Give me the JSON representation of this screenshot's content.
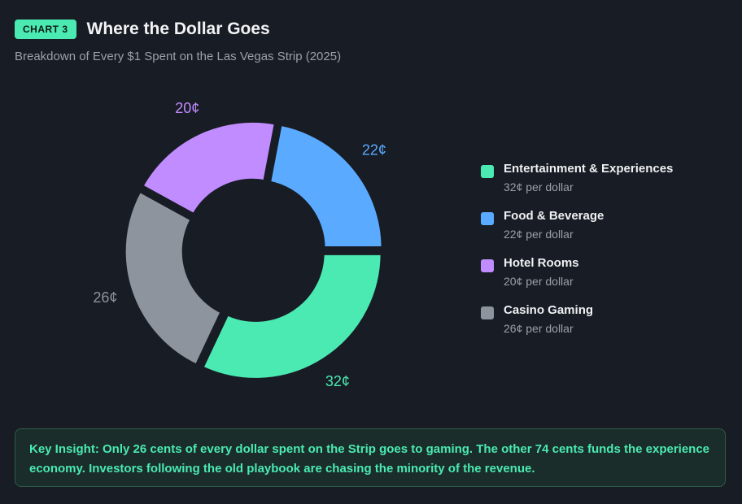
{
  "header": {
    "badge": "CHART 3",
    "title": "Where the Dollar Goes",
    "subtitle": "Breakdown of Every $1 Spent on the Las Vegas Strip (2025)"
  },
  "chart_data": {
    "type": "pie",
    "variant": "donut",
    "unit": "¢ per dollar",
    "slices": [
      {
        "name": "Entertainment & Experiences",
        "value": 32,
        "label": "32¢",
        "sub": "32¢ per dollar",
        "color": "#4aeab2"
      },
      {
        "name": "Casino Gaming",
        "value": 26,
        "label": "26¢",
        "sub": "26¢ per dollar",
        "color": "#8d949e"
      },
      {
        "name": "Hotel Rooms",
        "value": 20,
        "label": "20¢",
        "sub": "20¢ per dollar",
        "color": "#c08cff"
      },
      {
        "name": "Food & Beverage",
        "value": 22,
        "label": "22¢",
        "sub": "22¢ per dollar",
        "color": "#5aabff"
      }
    ],
    "legend_order": [
      "Entertainment & Experiences",
      "Food & Beverage",
      "Hotel Rooms",
      "Casino Gaming"
    ],
    "legend_position": "right"
  },
  "insight": {
    "text": "Key Insight: Only 26 cents of every dollar spent on the Strip goes to gaming. The other 74 cents funds the experience economy. Investors following the old playbook are chasing the minority of the revenue."
  },
  "colors": {
    "background": "#181c24",
    "accent": "#4aeab2",
    "insight_bg": "#1b2d2a",
    "insight_border": "#2f5a4a"
  }
}
